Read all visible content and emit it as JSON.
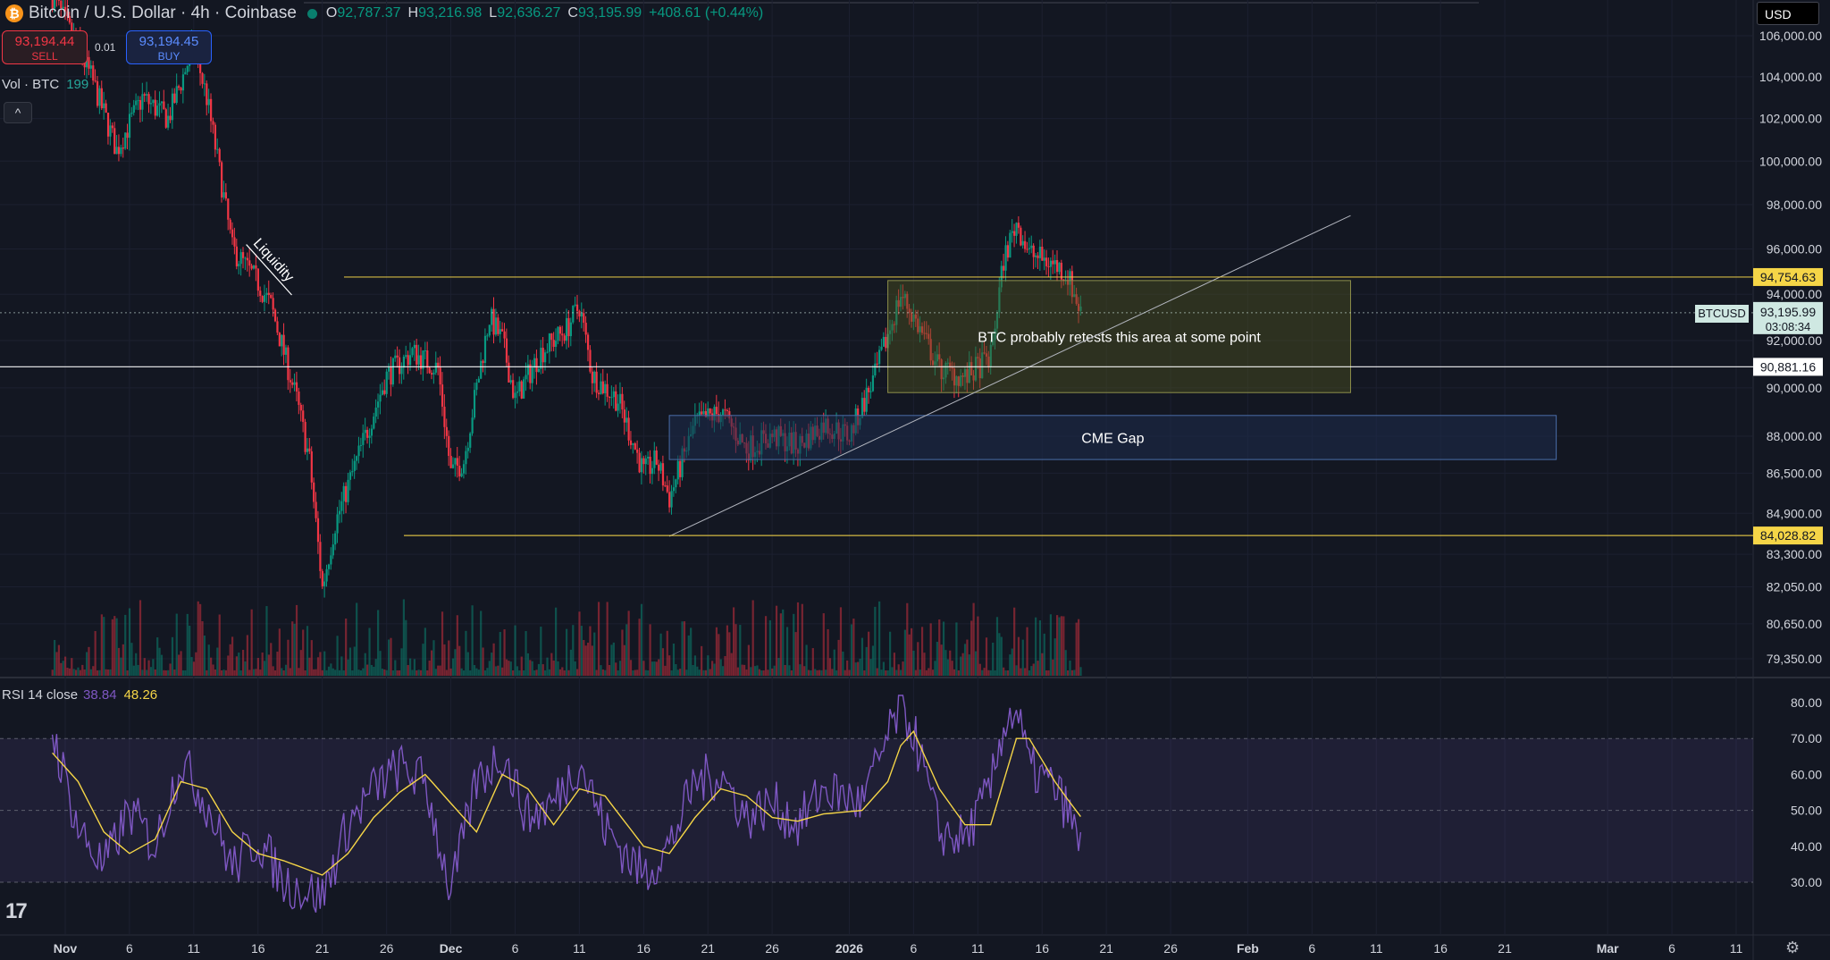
{
  "header": {
    "title": "Bitcoin / U.S. Dollar · 4h · Coinbase",
    "open_key": "O",
    "open": "92,787.37",
    "high_key": "H",
    "high": "93,216.98",
    "low_key": "L",
    "low": "92,636.27",
    "close_key": "C",
    "close": "93,195.99",
    "change": "+408.61 (+0.44%)"
  },
  "trade": {
    "sell_price": "93,194.44",
    "sell_label": "SELL",
    "spread": "0.01",
    "buy_price": "93,194.45",
    "buy_label": "BUY"
  },
  "volume_legend": {
    "label": "Vol · BTC",
    "value": "199"
  },
  "collapse_glyph": "^",
  "rsi_legend": {
    "label": "RSI 14 close",
    "rsi": "38.84",
    "ma": "48.26"
  },
  "currency_button": "USD",
  "logo_text": "17",
  "settings_icon": "gear-icon",
  "colors": {
    "up": "#089981",
    "down": "#f23645",
    "rsi": "#7e57c2",
    "rsi_ma": "#f5d547",
    "level": "#f5d547",
    "zone_green": "#4d5320",
    "zone_blue": "#1e2c4d"
  },
  "chart_data": [
    {
      "type": "candlestick",
      "title": "Bitcoin / U.S. Dollar · 4h · Coinbase",
      "x_axis": {
        "tick_labels": [
          "Nov",
          "6",
          "11",
          "16",
          "21",
          "26",
          "Dec",
          "6",
          "11",
          "16",
          "21",
          "26",
          "2026",
          "6",
          "11",
          "16",
          "21",
          "26",
          "Feb",
          "6",
          "11",
          "16",
          "21",
          "Mar",
          "6",
          "11"
        ],
        "tick_dates": [
          "2025-11-01",
          "2025-11-06",
          "2025-11-11",
          "2025-11-16",
          "2025-11-21",
          "2025-11-26",
          "2025-12-01",
          "2025-12-06",
          "2025-12-11",
          "2025-12-16",
          "2025-12-21",
          "2025-12-26",
          "2026-01-01",
          "2026-01-06",
          "2026-01-11",
          "2026-01-16",
          "2026-01-21",
          "2026-01-26",
          "2026-02-01",
          "2026-02-06",
          "2026-02-11",
          "2026-02-16",
          "2026-02-21",
          "2026-03-01",
          "2026-03-06",
          "2026-03-11"
        ]
      },
      "y_axis": {
        "scale": "log",
        "range": [
          78500,
          107500
        ],
        "tick_labels": [
          "106,000.00",
          "104,000.00",
          "102,000.00",
          "100,000.00",
          "98,000.00",
          "96,000.00",
          "94,000.00",
          "92,000.00",
          "90,000.00",
          "88,000.00",
          "86,500.00",
          "84,900.00",
          "83,300.00",
          "82,050.00",
          "80,650.00",
          "79,350.00"
        ],
        "tick_values": [
          106000,
          104000,
          102000,
          100000,
          98000,
          96000,
          94000,
          92000,
          90000,
          88000,
          86500,
          84900,
          83300,
          82050,
          80650,
          79350
        ]
      },
      "price_path": [
        [
          "2025-10-31",
          108000
        ],
        [
          "2025-11-03",
          104000
        ],
        [
          "2025-11-05",
          100500
        ],
        [
          "2025-11-07",
          103000
        ],
        [
          "2025-11-09",
          102000
        ],
        [
          "2025-11-11",
          105500
        ],
        [
          "2025-11-12",
          103000
        ],
        [
          "2025-11-14",
          96000
        ],
        [
          "2025-11-16",
          94500
        ],
        [
          "2025-11-17",
          93500
        ],
        [
          "2025-11-19",
          89500
        ],
        [
          "2025-11-20",
          87000
        ],
        [
          "2025-11-21",
          82000
        ],
        [
          "2025-11-22",
          84500
        ],
        [
          "2025-11-24",
          87500
        ],
        [
          "2025-11-26",
          90500
        ],
        [
          "2025-11-28",
          91500
        ],
        [
          "2025-11-30",
          90800
        ],
        [
          "2025-12-01",
          86500
        ],
        [
          "2025-12-02",
          87000
        ],
        [
          "2025-12-04",
          93000
        ],
        [
          "2025-12-05",
          92000
        ],
        [
          "2025-12-06",
          89500
        ],
        [
          "2025-12-08",
          91500
        ],
        [
          "2025-12-10",
          92500
        ],
        [
          "2025-12-11",
          93500
        ],
        [
          "2025-12-12",
          90500
        ],
        [
          "2025-12-14",
          89500
        ],
        [
          "2025-12-16",
          86500
        ],
        [
          "2025-12-17",
          87000
        ],
        [
          "2025-12-18",
          85500
        ],
        [
          "2025-12-20",
          88500
        ],
        [
          "2025-12-22",
          89000
        ],
        [
          "2025-12-24",
          87500
        ],
        [
          "2025-12-26",
          88000
        ],
        [
          "2025-12-28",
          87600
        ],
        [
          "2025-12-30",
          88500
        ],
        [
          "2026-01-01",
          88000
        ],
        [
          "2026-01-03",
          90500
        ],
        [
          "2026-01-05",
          94000
        ],
        [
          "2026-01-06",
          93000
        ],
        [
          "2026-01-08",
          90800
        ],
        [
          "2026-01-10",
          90400
        ],
        [
          "2026-01-12",
          91300
        ],
        [
          "2026-01-13",
          95500
        ],
        [
          "2026-01-14",
          97200
        ],
        [
          "2026-01-15",
          95800
        ],
        [
          "2026-01-17",
          95300
        ],
        [
          "2026-01-18",
          94800
        ],
        [
          "2026-01-19",
          93200
        ]
      ],
      "current_price": {
        "label": "BTCUSD",
        "price": "93,195.99",
        "countdown": "03:08:34"
      },
      "levels": [
        {
          "price": 94754.63,
          "label": "94,754.63",
          "color": "#f5d547"
        },
        {
          "price": 90881.16,
          "label": "90,881.16",
          "color": "#ffffff"
        },
        {
          "price": 84028.82,
          "label": "84,028.82",
          "color": "#f5d547"
        }
      ],
      "annotations": [
        {
          "kind": "text",
          "text": "Liquidity"
        },
        {
          "kind": "zone",
          "text": "BTC probably retests this area at some point",
          "from": "2026-01-04",
          "to": "2026-02-09",
          "top": 94600,
          "bottom": 89800
        },
        {
          "kind": "zone",
          "text": "CME Gap",
          "from": "2025-12-18",
          "to": "2026-02-25",
          "top": 88850,
          "bottom": 87050
        },
        {
          "kind": "trendline",
          "from": [
            "2025-12-18",
            84000
          ],
          "to": [
            "2026-02-09",
            97500
          ]
        }
      ],
      "volume": {
        "label": "Vol · BTC",
        "last": "199"
      }
    },
    {
      "type": "line",
      "title": "RSI 14 close",
      "series": [
        {
          "name": "RSI",
          "last": 38.84,
          "values": [
            [
              "2025-10-31",
              72
            ],
            [
              "2025-11-02",
              45
            ],
            [
              "2025-11-04",
              34
            ],
            [
              "2025-11-06",
              50
            ],
            [
              "2025-11-08",
              40
            ],
            [
              "2025-11-10",
              64
            ],
            [
              "2025-11-12",
              52
            ],
            [
              "2025-11-14",
              34
            ],
            [
              "2025-11-16",
              42
            ],
            [
              "2025-11-18",
              30
            ],
            [
              "2025-11-21",
              26
            ],
            [
              "2025-11-23",
              46
            ],
            [
              "2025-11-25",
              56
            ],
            [
              "2025-11-27",
              62
            ],
            [
              "2025-11-29",
              58
            ],
            [
              "2025-12-01",
              27
            ],
            [
              "2025-12-03",
              58
            ],
            [
              "2025-12-05",
              66
            ],
            [
              "2025-12-07",
              48
            ],
            [
              "2025-12-09",
              52
            ],
            [
              "2025-12-11",
              64
            ],
            [
              "2025-12-13",
              45
            ],
            [
              "2025-12-16",
              32
            ],
            [
              "2025-12-18",
              40
            ],
            [
              "2025-12-20",
              58
            ],
            [
              "2025-12-22",
              60
            ],
            [
              "2025-12-24",
              48
            ],
            [
              "2025-12-26",
              52
            ],
            [
              "2025-12-28",
              46
            ],
            [
              "2025-12-30",
              56
            ],
            [
              "2026-01-02",
              52
            ],
            [
              "2026-01-04",
              70
            ],
            [
              "2026-01-05",
              79
            ],
            [
              "2026-01-06",
              72
            ],
            [
              "2026-01-08",
              44
            ],
            [
              "2026-01-10",
              42
            ],
            [
              "2026-01-12",
              56
            ],
            [
              "2026-01-13",
              74
            ],
            [
              "2026-01-14",
              78
            ],
            [
              "2026-01-15",
              62
            ],
            [
              "2026-01-17",
              56
            ],
            [
              "2026-01-18",
              50
            ],
            [
              "2026-01-19",
              38.84
            ]
          ]
        },
        {
          "name": "RSI-based MA",
          "last": 48.26,
          "values": [
            [
              "2025-10-31",
              66
            ],
            [
              "2025-11-02",
              58
            ],
            [
              "2025-11-04",
              44
            ],
            [
              "2025-11-06",
              38
            ],
            [
              "2025-11-08",
              42
            ],
            [
              "2025-11-10",
              58
            ],
            [
              "2025-11-12",
              56
            ],
            [
              "2025-11-14",
              44
            ],
            [
              "2025-11-16",
              38
            ],
            [
              "2025-11-18",
              36
            ],
            [
              "2025-11-21",
              32
            ],
            [
              "2025-11-23",
              38
            ],
            [
              "2025-11-25",
              48
            ],
            [
              "2025-11-27",
              55
            ],
            [
              "2025-11-29",
              60
            ],
            [
              "2025-12-01",
              52
            ],
            [
              "2025-12-03",
              44
            ],
            [
              "2025-12-05",
              60
            ],
            [
              "2025-12-07",
              56
            ],
            [
              "2025-12-09",
              46
            ],
            [
              "2025-12-11",
              56
            ],
            [
              "2025-12-13",
              54
            ],
            [
              "2025-12-16",
              40
            ],
            [
              "2025-12-18",
              38
            ],
            [
              "2025-12-20",
              48
            ],
            [
              "2025-12-22",
              56
            ],
            [
              "2025-12-24",
              54
            ],
            [
              "2025-12-26",
              48
            ],
            [
              "2025-12-28",
              47
            ],
            [
              "2025-12-30",
              49
            ],
            [
              "2026-01-02",
              50
            ],
            [
              "2026-01-04",
              58
            ],
            [
              "2026-01-05",
              68
            ],
            [
              "2026-01-06",
              72
            ],
            [
              "2026-01-08",
              56
            ],
            [
              "2026-01-10",
              46
            ],
            [
              "2026-01-12",
              46
            ],
            [
              "2026-01-13",
              58
            ],
            [
              "2026-01-14",
              70
            ],
            [
              "2026-01-15",
              70
            ],
            [
              "2026-01-17",
              58
            ],
            [
              "2026-01-18",
              53
            ],
            [
              "2026-01-19",
              48.26
            ]
          ]
        }
      ],
      "y_axis": {
        "range": [
          18,
          84
        ],
        "tick_labels": [
          "80.00",
          "70.00",
          "60.00",
          "50.00",
          "40.00",
          "30.00"
        ],
        "tick_values": [
          80,
          70,
          60,
          50,
          40,
          30
        ]
      },
      "bands": {
        "upper": 70,
        "middle": 50,
        "lower": 30
      }
    }
  ]
}
